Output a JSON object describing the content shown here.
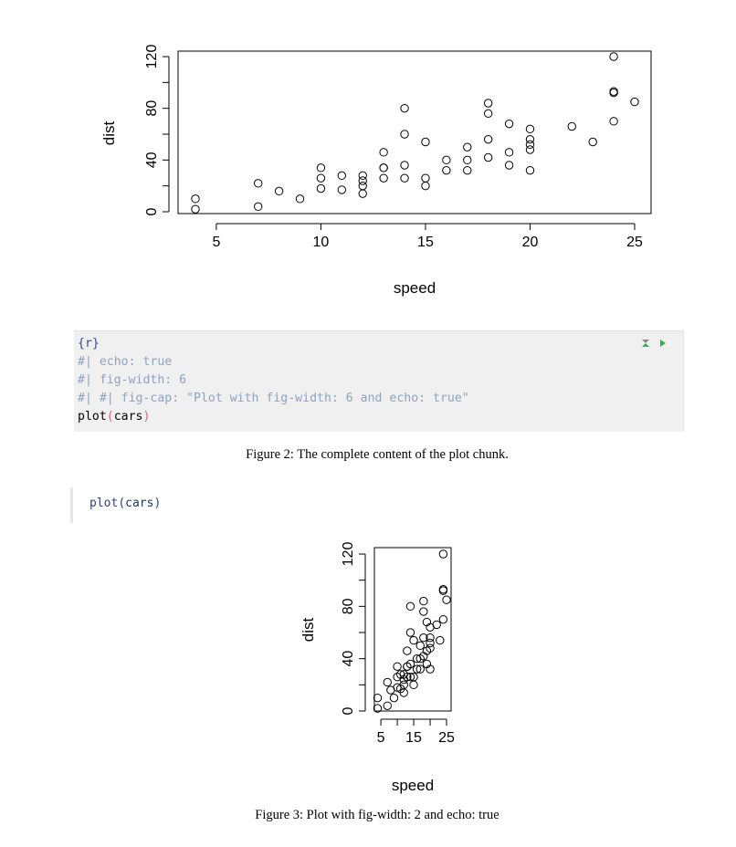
{
  "plots": {
    "plot1": {
      "xlabel": "speed",
      "ylabel": "dist",
      "xticks": [
        "5",
        "10",
        "15",
        "20",
        "25"
      ],
      "yticks": [
        "0",
        "40",
        "80",
        "120"
      ]
    },
    "plot2": {
      "xlabel": "speed",
      "ylabel": "dist",
      "xticks": [
        "5",
        "15",
        "25"
      ],
      "yticks": [
        "0",
        "40",
        "80",
        "120"
      ]
    }
  },
  "code_chunk": {
    "header": "{r}",
    "line1": "#| echo: true",
    "line2": "#| fig-width: 6",
    "line3": "#| #| fig-cap: \"Plot with fig-width: 6 and echo: true\"",
    "line4_fn": "plot",
    "line4_open": "(",
    "line4_arg": "cars",
    "line4_close": ")",
    "icons": [
      "collapse-icon",
      "run-chunk-icon"
    ]
  },
  "captions": {
    "figure2": "Figure 2: The complete content of the plot chunk.",
    "figure3": "Figure 3: Plot with fig-width: 2 and echo: true"
  },
  "echo_code": {
    "fn": "plot",
    "open": "(",
    "arg": "cars",
    "close": ")"
  },
  "chart_data": [
    {
      "type": "scatter",
      "series": [
        {
          "x": [
            4,
            4,
            7,
            7,
            8,
            9,
            10,
            10,
            10,
            11,
            11,
            12,
            12,
            12,
            12,
            13,
            13,
            13,
            13,
            14,
            14,
            14,
            14,
            15,
            15,
            15,
            16,
            16,
            17,
            17,
            17,
            18,
            18,
            18,
            18,
            19,
            19,
            19,
            20,
            20,
            20,
            20,
            20,
            22,
            23,
            24,
            24,
            24,
            24,
            25
          ],
          "y": [
            2,
            10,
            4,
            22,
            16,
            10,
            18,
            26,
            34,
            17,
            28,
            14,
            20,
            24,
            28,
            26,
            34,
            34,
            46,
            26,
            36,
            60,
            80,
            20,
            26,
            54,
            32,
            40,
            32,
            40,
            50,
            42,
            56,
            76,
            84,
            36,
            46,
            68,
            32,
            48,
            52,
            56,
            64,
            66,
            54,
            70,
            92,
            93,
            120,
            85
          ]
        }
      ],
      "xlabel": "speed",
      "ylabel": "dist",
      "xlim": [
        4,
        25
      ],
      "ylim": [
        0,
        120
      ],
      "grid": false
    },
    {
      "type": "scatter",
      "series": [
        {
          "x": [
            4,
            4,
            7,
            7,
            8,
            9,
            10,
            10,
            10,
            11,
            11,
            12,
            12,
            12,
            12,
            13,
            13,
            13,
            13,
            14,
            14,
            14,
            14,
            15,
            15,
            15,
            16,
            16,
            17,
            17,
            17,
            18,
            18,
            18,
            18,
            19,
            19,
            19,
            20,
            20,
            20,
            20,
            20,
            22,
            23,
            24,
            24,
            24,
            24,
            25
          ],
          "y": [
            2,
            10,
            4,
            22,
            16,
            10,
            18,
            26,
            34,
            17,
            28,
            14,
            20,
            24,
            28,
            26,
            34,
            34,
            46,
            26,
            36,
            60,
            80,
            20,
            26,
            54,
            32,
            40,
            32,
            40,
            50,
            42,
            56,
            76,
            84,
            36,
            46,
            68,
            32,
            48,
            52,
            56,
            64,
            66,
            54,
            70,
            92,
            93,
            120,
            85
          ]
        }
      ],
      "xlabel": "speed",
      "ylabel": "dist",
      "xlim": [
        4,
        25
      ],
      "ylim": [
        0,
        120
      ],
      "grid": false
    }
  ]
}
